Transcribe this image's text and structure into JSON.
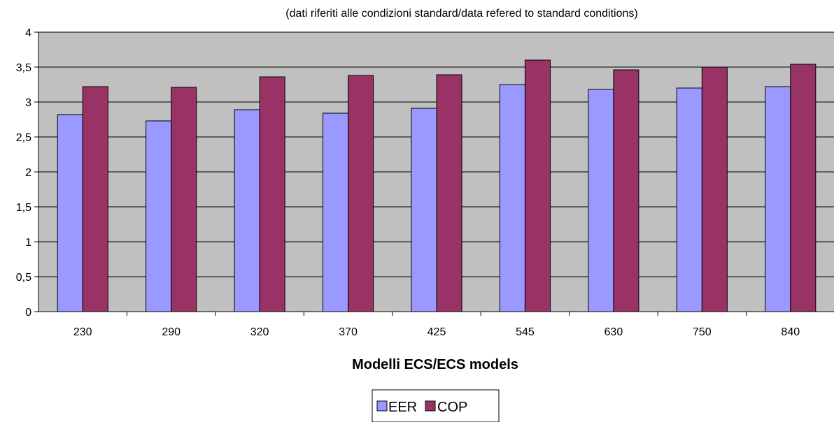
{
  "chart_data": {
    "type": "bar",
    "title": "",
    "subtitle": "(dati riferiti alle condizioni standard/data refered to standard conditions)",
    "xlabel": "Modelli ECS/ECS models",
    "ylabel": "",
    "categories": [
      "230",
      "290",
      "320",
      "370",
      "425",
      "545",
      "630",
      "750",
      "840"
    ],
    "series": [
      {
        "name": "EER",
        "color": "#9999FF",
        "values": [
          2.82,
          2.73,
          2.89,
          2.84,
          2.91,
          3.25,
          3.18,
          3.2,
          3.22
        ]
      },
      {
        "name": "COP",
        "color": "#993366",
        "values": [
          3.22,
          3.21,
          3.36,
          3.38,
          3.39,
          3.6,
          3.46,
          3.5,
          3.54
        ]
      }
    ],
    "ylim": [
      0,
      4
    ],
    "yticks": [
      "0",
      "0,5",
      "1",
      "1,5",
      "2",
      "2,5",
      "3",
      "3,5",
      "4"
    ],
    "plot_background": "#C0C0C0",
    "grid": true,
    "legend_position": "bottom"
  }
}
